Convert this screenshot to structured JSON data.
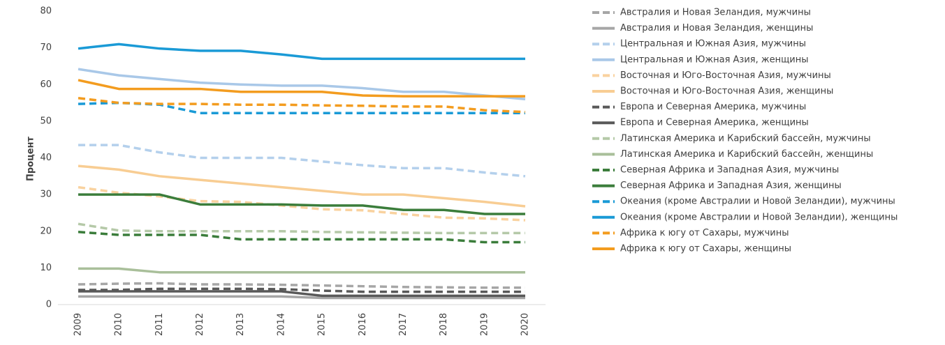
{
  "chart_data": {
    "type": "line",
    "y_label": "Процент",
    "categories": [
      "2009",
      "2010",
      "2011",
      "2012",
      "2013",
      "2014",
      "2015",
      "2016",
      "2017",
      "2018",
      "2019",
      "2020"
    ],
    "ylim": [
      0,
      80
    ],
    "yticks": [
      0,
      10,
      20,
      30,
      40,
      50,
      60,
      70,
      80
    ],
    "grid": false,
    "legend": "right",
    "series": [
      {
        "name": "Австралия и Новая Зеландия, мужчины",
        "color": "#a6a6a6",
        "dashed": true,
        "values": [
          5.5,
          5.7,
          5.8,
          5.5,
          5.5,
          5.4,
          5.2,
          5,
          4.8,
          4.7,
          4.6,
          4.6
        ]
      },
      {
        "name": "Австралия и Новая Зеландия, женщины",
        "color": "#a6a6a6",
        "dashed": false,
        "values": [
          2.2,
          2.2,
          2.2,
          2.2,
          2.2,
          2.2,
          1.8,
          1.8,
          1.8,
          1.8,
          1.8,
          1.8
        ]
      },
      {
        "name": "Центральная и Южная Азия, мужчины",
        "color": "#b4d0ec",
        "dashed": true,
        "values": [
          43.5,
          43.5,
          41.5,
          40,
          40,
          40,
          39,
          38,
          37.2,
          37.2,
          36,
          35
        ]
      },
      {
        "name": "Центральная и Южная Азия, женщины",
        "color": "#a9c8e8",
        "dashed": false,
        "values": [
          64.2,
          62.5,
          61.5,
          60.5,
          60,
          59.7,
          59.7,
          59,
          58,
          58,
          57,
          56
        ]
      },
      {
        "name": "Восточная и Юго-Восточная Азия, мужчины",
        "color": "#f9d29f",
        "dashed": true,
        "values": [
          32,
          30.5,
          29.5,
          28.2,
          28,
          27,
          26,
          25.7,
          24.7,
          23.7,
          23.5,
          23
        ]
      },
      {
        "name": "Восточная и Юго-Восточная Азия, женщины",
        "color": "#f8cd93",
        "dashed": false,
        "values": [
          37.8,
          36.8,
          35,
          34,
          33,
          32,
          31,
          30,
          30,
          29,
          28,
          26.8
        ]
      },
      {
        "name": "Европа и Северная Америка, мужчины",
        "color": "#595959",
        "dashed": true,
        "values": [
          4,
          4,
          4.3,
          4.3,
          4.3,
          4.2,
          3.8,
          3.5,
          3.5,
          3.5,
          3.5,
          3.5
        ]
      },
      {
        "name": "Европа и Северная Америка, женщины",
        "color": "#595959",
        "dashed": false,
        "values": [
          3.6,
          3.6,
          3.6,
          3.6,
          3.6,
          3.6,
          2.4,
          2.4,
          2.4,
          2.4,
          2.4,
          2.4
        ]
      },
      {
        "name": "Латинская Америка и Карибский бассейн, мужчины",
        "color": "#b5c9a8",
        "dashed": true,
        "values": [
          22,
          20.2,
          20,
          20,
          20,
          20,
          19.8,
          19.7,
          19.6,
          19.5,
          19.5,
          19.5
        ]
      },
      {
        "name": "Латинская Америка и Карибский бассейн, женщины",
        "color": "#a9bf9a",
        "dashed": false,
        "values": [
          9.8,
          9.8,
          8.8,
          8.8,
          8.8,
          8.8,
          8.8,
          8.8,
          8.8,
          8.8,
          8.8,
          8.8
        ]
      },
      {
        "name": "Северная Африка и Западная Азия, мужчины",
        "color": "#3b7d3b",
        "dashed": true,
        "values": [
          19.8,
          19,
          19,
          19,
          17.8,
          17.8,
          17.8,
          17.8,
          17.8,
          17.8,
          17,
          17
        ]
      },
      {
        "name": "Северная Африка и Западная Азия, женщины",
        "color": "#3b7d3b",
        "dashed": false,
        "values": [
          30,
          30,
          30,
          27.3,
          27.3,
          27.3,
          27,
          27,
          25.8,
          25.8,
          24.7,
          24.7
        ]
      },
      {
        "name": "Океания (кроме Австралии и Новой Зеландии), мужчины",
        "color": "#1a9ad6",
        "dashed": true,
        "values": [
          54.7,
          55,
          54.5,
          52.2,
          52.2,
          52.2,
          52.2,
          52.2,
          52.2,
          52.2,
          52.2,
          52.2
        ]
      },
      {
        "name": "Океания (кроме Австралии и Новой Зеландии), женщины",
        "color": "#1a9ad6",
        "dashed": false,
        "values": [
          69.8,
          71,
          69.8,
          69.2,
          69.2,
          68.2,
          67,
          67,
          67,
          67,
          67,
          67
        ]
      },
      {
        "name": "Африка к югу от Сахары, мужчины",
        "color": "#f39c1f",
        "dashed": true,
        "values": [
          56.3,
          55,
          54.7,
          54.7,
          54.5,
          54.5,
          54.3,
          54.2,
          54,
          54,
          53,
          52.5
        ]
      },
      {
        "name": "Африка к югу от Сахары, женщины",
        "color": "#f39c1f",
        "dashed": false,
        "values": [
          61.2,
          58.8,
          58.8,
          58.8,
          58,
          58,
          58,
          57,
          56.8,
          56.8,
          56.8,
          56.8
        ]
      }
    ]
  }
}
